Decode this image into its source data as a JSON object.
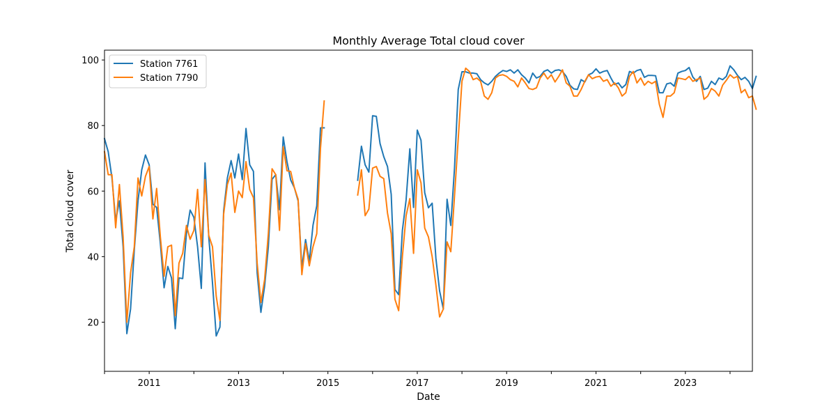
{
  "chart_data": {
    "type": "line",
    "title": "Monthly Average Total cloud cover",
    "xlabel": "Date",
    "ylabel": "Total cloud cover",
    "x_range": [
      "2010-01",
      "2024-07"
    ],
    "ylim": [
      5,
      103
    ],
    "y_ticks": [
      20,
      40,
      60,
      80,
      100
    ],
    "x_ticks": [
      "2011",
      "2013",
      "2015",
      "2017",
      "2019",
      "2021",
      "2023"
    ],
    "grid": false,
    "legend_position": "top-left",
    "series": [
      {
        "name": "Station 7761",
        "color": "#1f77b4",
        "segments": [
          {
            "start": "2010-01",
            "values": [
              76.0,
              72.0,
              64.0,
              51.0,
              57.0,
              43.0,
              16.5,
              24.0,
              42.0,
              57.0,
              66.5,
              71.0,
              68.0,
              56.0,
              55.0,
              44.0,
              30.5,
              37.0,
              33.5,
              18.0,
              33.5,
              33.3,
              47.0,
              54.2,
              52.0,
              43.0,
              30.3,
              68.6,
              46.0,
              32.0,
              15.8,
              18.5,
              54.0,
              64.0,
              69.3,
              64.0,
              71.3,
              63.5,
              79.1,
              68.0,
              66.0,
              35.0,
              23.0,
              31.0,
              43.0,
              63.6,
              65.0,
              54.3,
              76.5,
              69.0,
              63.4,
              61.0,
              57.0,
              36.5,
              45.2,
              38.6,
              49.6,
              55.5,
              79.3,
              79.3
            ]
          },
          {
            "start": "2015-09",
            "values": [
              63.3,
              73.7,
              68.0,
              65.8,
              83.0,
              82.8,
              74.5,
              70.5,
              67.5,
              59.0,
              30.0,
              28.4,
              48.0,
              57.3,
              72.9,
              55.0,
              78.6,
              75.5,
              59.5,
              54.9,
              56.3,
              39.5,
              29.5,
              24.0,
              57.5,
              49.5,
              67.0,
              91.0,
              96.4,
              96.4,
              96.0,
              96.0,
              95.8,
              94.0,
              93.0,
              92.4,
              93.5,
              95.0,
              96.0,
              96.8,
              96.5,
              97.0,
              96.0,
              97.0,
              95.5,
              94.5,
              93.0,
              96.0,
              94.5,
              95.0,
              96.5,
              97.0,
              96.0,
              96.8,
              97.0,
              96.5,
              95.0,
              92.3,
              91.2,
              91.0,
              94.0,
              93.3,
              95.5,
              96.0,
              97.3,
              96.0,
              96.5,
              96.8,
              94.5,
              92.5,
              93.0,
              91.5,
              92.5,
              96.5,
              96.0,
              96.8,
              97.1,
              94.7,
              95.3,
              95.3,
              95.2,
              90.0,
              90.0,
              92.7,
              93.0,
              92.0,
              96.0,
              96.5,
              96.8,
              97.7,
              94.8,
              93.5,
              95.0,
              91.0,
              91.4,
              93.5,
              92.5,
              94.5,
              94.0,
              95.0,
              98.2,
              97.0,
              95.3,
              94.0,
              94.7,
              93.5,
              91.3,
              95.0
            ]
          }
        ]
      },
      {
        "name": "Station 7790",
        "color": "#ff7f0e",
        "segments": [
          {
            "start": "2010-01",
            "values": [
              72.0,
              65.0,
              65.0,
              48.8,
              62.0,
              46.0,
              20.0,
              35.0,
              43.0,
              64.0,
              58.5,
              64.5,
              67.5,
              51.5,
              60.8,
              46.0,
              34.0,
              43.0,
              43.5,
              22.0,
              38.0,
              41.0,
              49.5,
              45.3,
              48.0,
              60.5,
              43.0,
              63.5,
              46.5,
              43.0,
              28.0,
              20.5,
              53.0,
              62.0,
              65.5,
              53.5,
              60.0,
              58.0,
              69.0,
              60.5,
              58.0,
              38.0,
              26.0,
              33.0,
              47.0,
              66.8,
              65.0,
              48.0,
              73.5,
              66.2,
              66.0,
              61.0,
              57.5,
              34.5,
              44.0,
              37.2,
              43.0,
              47.0,
              73.0,
              87.5
            ]
          },
          {
            "start": "2015-09",
            "values": [
              58.8,
              66.5,
              52.5,
              54.5,
              67.0,
              67.5,
              64.5,
              63.8,
              53.3,
              47.0,
              27.0,
              23.5,
              40.0,
              52.5,
              57.7,
              41.0,
              66.5,
              62.5,
              48.7,
              46.0,
              40.0,
              31.3,
              21.6,
              24.0,
              44.5,
              41.5,
              58.5,
              76.0,
              93.5,
              97.5,
              96.5,
              94.0,
              94.5,
              93.5,
              89.0,
              88.0,
              90.0,
              94.5,
              95.3,
              95.5,
              95.0,
              94.0,
              93.5,
              91.8,
              94.5,
              93.0,
              91.3,
              91.0,
              91.5,
              94.5,
              96.0,
              94.2,
              95.5,
              93.3,
              95.0,
              97.0,
              93.0,
              92.0,
              89.0,
              89.0,
              91.0,
              93.5,
              95.5,
              94.3,
              94.8,
              95.0,
              93.5,
              94.0,
              92.0,
              93.0,
              91.5,
              89.0,
              90.0,
              95.0,
              96.5,
              93.0,
              94.5,
              92.3,
              93.5,
              92.8,
              93.5,
              86.5,
              82.5,
              89.0,
              89.0,
              90.0,
              94.5,
              94.3,
              94.0,
              95.0,
              93.5,
              94.0,
              94.5,
              88.0,
              89.0,
              91.3,
              90.5,
              89.0,
              92.3,
              93.8,
              95.5,
              94.5,
              95.0,
              90.0,
              91.0,
              88.5,
              89.0,
              85.0
            ]
          }
        ]
      }
    ]
  }
}
